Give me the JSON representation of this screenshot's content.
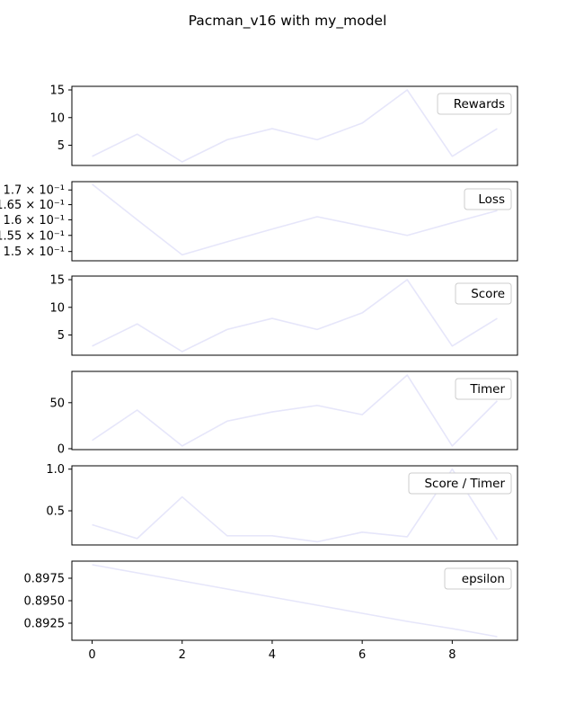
{
  "figure": {
    "title": "Pacman_v16 with my_model"
  },
  "colors": {
    "line": "#e6e6fa",
    "axes": "#000000",
    "text": "#000000"
  },
  "chart_data": [
    {
      "type": "line",
      "series": [
        {
          "name": "Rewards",
          "values": [
            3,
            7,
            2,
            6,
            8,
            6,
            9,
            15,
            3,
            8
          ]
        }
      ],
      "x": [
        0,
        1,
        2,
        3,
        4,
        5,
        6,
        7,
        8,
        9
      ],
      "ylim": [
        1.35,
        15.65
      ],
      "yticks": [
        5,
        10,
        15
      ],
      "ytick_labels": [
        "5",
        "10",
        "15"
      ],
      "yscale": "linear",
      "legend": "top-right"
    },
    {
      "type": "line",
      "series": [
        {
          "name": "Loss",
          "values": [
            0.172,
            0.16,
            0.149,
            0.153,
            0.157,
            0.161,
            0.158,
            0.155,
            0.159,
            0.163
          ]
        }
      ],
      "x": [
        0,
        1,
        2,
        3,
        4,
        5,
        6,
        7,
        8,
        9
      ],
      "ylim": [
        0.1472,
        0.1729
      ],
      "yticks": [
        0.15,
        0.155,
        0.16,
        0.165,
        0.17
      ],
      "ytick_labels": [
        "1.5 × 10⁻¹",
        "1.55 × 10⁻¹",
        "1.6 × 10⁻¹",
        "1.65 × 10⁻¹",
        "1.7 × 10⁻¹"
      ],
      "yscale": "log",
      "legend": "top-right"
    },
    {
      "type": "line",
      "series": [
        {
          "name": "Score",
          "values": [
            3,
            7,
            2,
            6,
            8,
            6,
            9,
            15,
            3,
            8
          ]
        }
      ],
      "x": [
        0,
        1,
        2,
        3,
        4,
        5,
        6,
        7,
        8,
        9
      ],
      "ylim": [
        1.35,
        15.65
      ],
      "yticks": [
        5,
        10,
        15
      ],
      "ytick_labels": [
        "5",
        "10",
        "15"
      ],
      "yscale": "linear",
      "legend": "top-right"
    },
    {
      "type": "line",
      "series": [
        {
          "name": "Timer",
          "values": [
            9,
            42,
            3,
            30,
            40,
            47,
            37,
            80,
            3,
            52
          ]
        }
      ],
      "x": [
        0,
        1,
        2,
        3,
        4,
        5,
        6,
        7,
        8,
        9
      ],
      "ylim": [
        -1,
        84
      ],
      "yticks": [
        0,
        50
      ],
      "ytick_labels": [
        "0",
        "50"
      ],
      "yscale": "linear",
      "legend": "top-right"
    },
    {
      "type": "line",
      "series": [
        {
          "name": "Score / Timer",
          "values": [
            0.333,
            0.167,
            0.667,
            0.2,
            0.2,
            0.128,
            0.243,
            0.188,
            1.0,
            0.154
          ]
        }
      ],
      "x": [
        0,
        1,
        2,
        3,
        4,
        5,
        6,
        7,
        8,
        9
      ],
      "ylim": [
        0.09,
        1.04
      ],
      "yticks": [
        0.5,
        1.0
      ],
      "ytick_labels": [
        "0.5",
        "1.0"
      ],
      "yscale": "linear",
      "legend": "top-right"
    },
    {
      "type": "line",
      "series": [
        {
          "name": "epsilon",
          "values": [
            0.899,
            0.8981,
            0.8972,
            0.8963,
            0.8954,
            0.8945,
            0.8936,
            0.8927,
            0.8919,
            0.891
          ]
        }
      ],
      "x": [
        0,
        1,
        2,
        3,
        4,
        5,
        6,
        7,
        8,
        9
      ],
      "ylim": [
        0.8906,
        0.8994
      ],
      "yticks": [
        0.8925,
        0.895,
        0.8975
      ],
      "ytick_labels": [
        "0.8925",
        "0.8950",
        "0.8975"
      ],
      "yscale": "linear",
      "legend": "top-right"
    }
  ],
  "xaxis": {
    "xlim": [
      -0.45,
      9.45
    ],
    "ticks": [
      0,
      2,
      4,
      6,
      8
    ],
    "tick_labels": [
      "0",
      "2",
      "4",
      "6",
      "8"
    ]
  }
}
